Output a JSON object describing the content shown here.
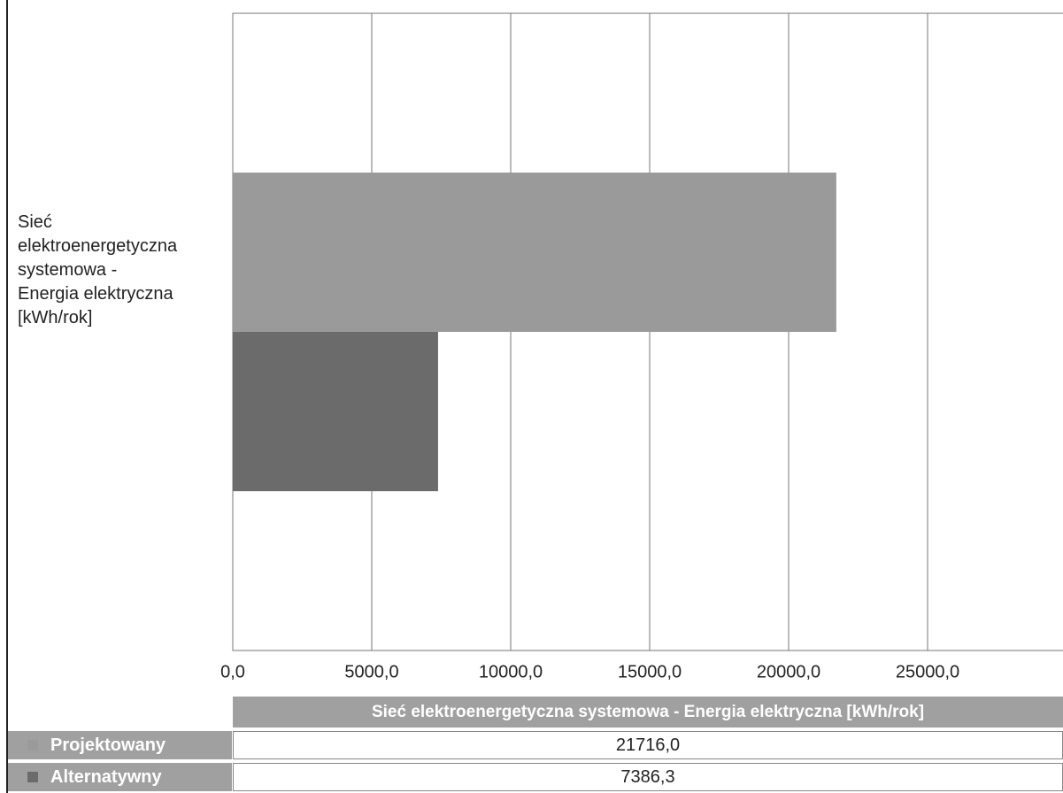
{
  "chart_data": {
    "type": "barh",
    "categories": [
      "Sieć elektroenergetyczna systemowa - Energia elektryczna [kWh/rok]"
    ],
    "series": [
      {
        "name": "Projektowany",
        "color": "#9a9a9a",
        "values": [
          21716.0
        ],
        "value_labels": [
          "21716,0"
        ]
      },
      {
        "name": "Alternatywny",
        "color": "#6b6b6b",
        "values": [
          7386.3
        ],
        "value_labels": [
          "7386,3"
        ]
      }
    ],
    "xlim": [
      0,
      30000
    ],
    "xticks": [
      {
        "value": 0,
        "label": "0,0"
      },
      {
        "value": 5000,
        "label": "5000,0"
      },
      {
        "value": 10000,
        "label": "10000,0"
      },
      {
        "value": 15000,
        "label": "15000,0"
      },
      {
        "value": 20000,
        "label": "20000,0"
      },
      {
        "value": 25000,
        "label": "25000,0"
      }
    ],
    "grid": true
  }
}
